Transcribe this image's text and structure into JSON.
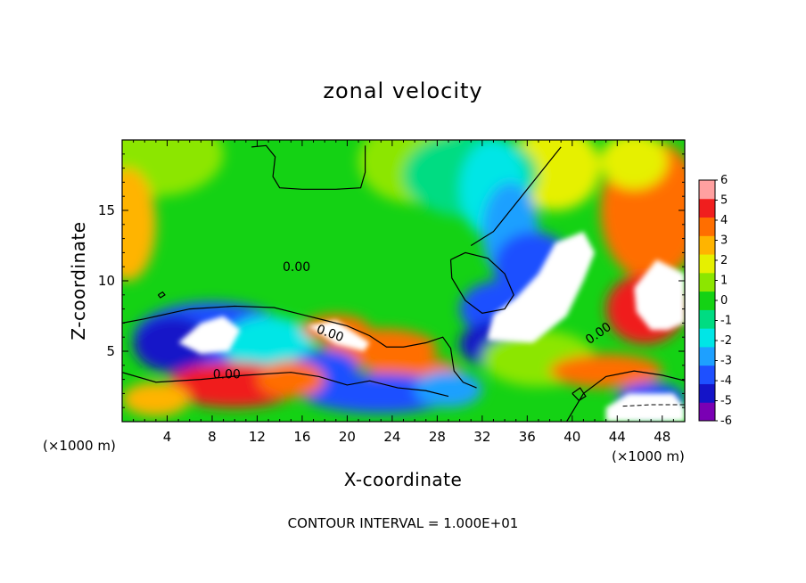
{
  "chart_data": {
    "type": "heatmap",
    "title": "zonal velocity",
    "xlabel": "X-coordinate",
    "ylabel": "Z-coordinate",
    "x_unit_note": "(×1000 m)",
    "xlim": [
      0,
      50
    ],
    "ylim": [
      0,
      20
    ],
    "x_ticks": [
      4,
      8,
      12,
      16,
      20,
      24,
      28,
      32,
      36,
      40,
      44,
      48
    ],
    "y_ticks": [
      5,
      10,
      15
    ],
    "color_scale": {
      "min": -6,
      "max": 6,
      "ticks": [
        6,
        5,
        4,
        3,
        2,
        1,
        0,
        -1,
        -2,
        -3,
        -4,
        -5,
        -6
      ],
      "colors": [
        "#7a00b4",
        "#1414c8",
        "#1e50ff",
        "#1ea0ff",
        "#00e6e6",
        "#00dc82",
        "#14d214",
        "#8ce600",
        "#e6f000",
        "#ffb400",
        "#ff6e00",
        "#f01e1e",
        "#ffa0a0"
      ],
      "out_of_range_color": "#ffffff"
    },
    "contour_label": "0.00",
    "footnote": "CONTOUR INTERVAL = 1.000E+01"
  }
}
